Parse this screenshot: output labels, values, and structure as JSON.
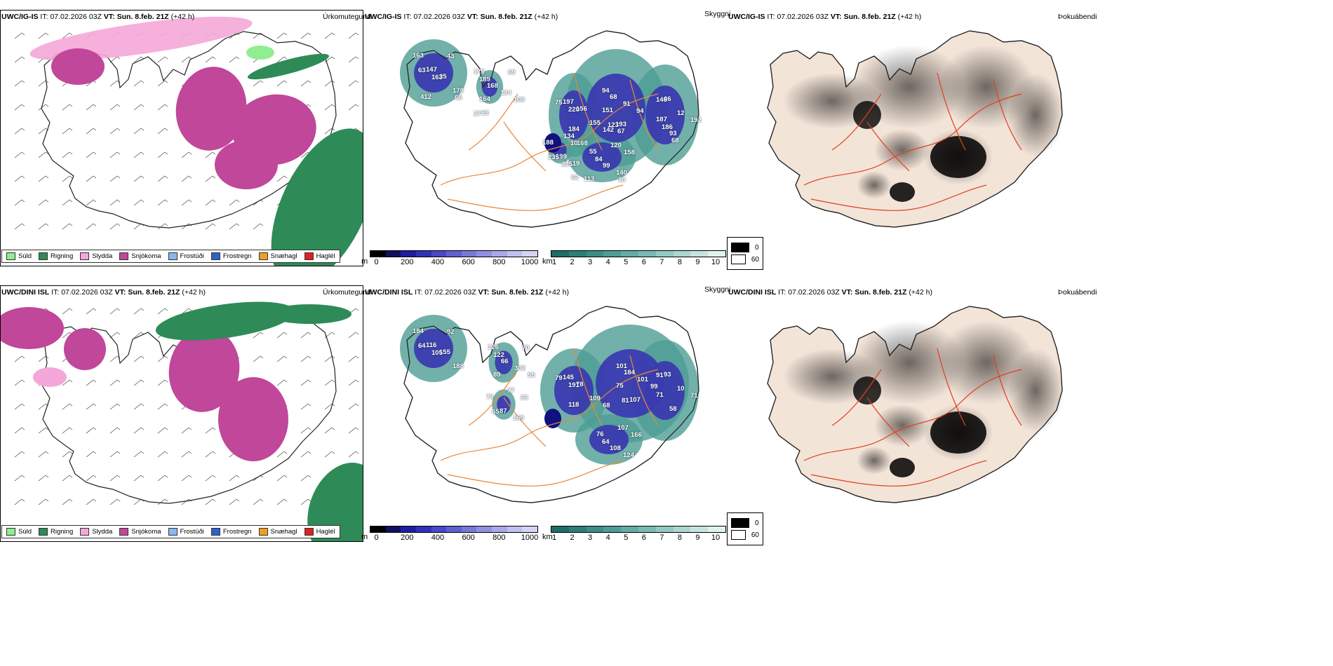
{
  "rows": [
    {
      "model": "UWC/IG-IS",
      "it_label": "IT:",
      "it_value": "07.02.2026 03Z",
      "vt_label": "VT:",
      "vt_value": "Sun. 8.feb. 21Z",
      "lead": "(+42 h)",
      "numbers": [
        "163",
        "179",
        "197",
        "68",
        "86",
        "134",
        "120",
        "43",
        "69",
        "75",
        "94",
        "146",
        "188",
        "55",
        "147",
        "168",
        "156",
        "91",
        "12",
        "168",
        "158",
        "63",
        "189",
        "220",
        "151",
        "187",
        "199",
        "99",
        "35",
        "124",
        "155",
        "94",
        "192",
        "235",
        "84",
        "163",
        "164",
        "184",
        "193",
        "93",
        "119",
        "140",
        "178",
        "108",
        "142",
        "123",
        "186",
        "235",
        "113",
        "412",
        "63",
        "10",
        "67",
        "68",
        "62",
        "18",
        "65",
        "27"
      ]
    },
    {
      "model": "UWC/DINI ISL",
      "it_label": "IT:",
      "it_value": "07.02.2026 03Z",
      "vt_label": "VT:",
      "vt_value": "Sun. 8.feb. 21Z",
      "lead": "(+42 h)",
      "numbers": [
        "184",
        "126",
        "145",
        "184",
        "93",
        "77",
        "107",
        "92",
        "70",
        "79",
        "101",
        "91",
        "73",
        "76",
        "116",
        "66",
        "78",
        "101",
        "10",
        "63",
        "166",
        "64",
        "122",
        "191",
        "75",
        "71",
        "87",
        "108",
        "155",
        "302",
        "109",
        "99",
        "71",
        "65",
        "64",
        "105",
        "89",
        "118",
        "107",
        "58",
        "169",
        "124",
        "188",
        "55",
        "68",
        "81"
      ]
    }
  ],
  "panel_titles": {
    "precip_type": "Úrkomutegund",
    "visibility": "Skyggni",
    "fog": "Þokuábendi"
  },
  "precip_legend": [
    {
      "label": "Súld",
      "color": "#90ee90"
    },
    {
      "label": "Rigning",
      "color": "#2e8b57"
    },
    {
      "label": "Slydda",
      "color": "#f4a7d8"
    },
    {
      "label": "Snjókoma",
      "color": "#c0479a"
    },
    {
      "label": "Frostúði",
      "color": "#87b8f0"
    },
    {
      "label": "Frostregn",
      "color": "#2f62c8"
    },
    {
      "label": "Snæhagl",
      "color": "#f0a020"
    },
    {
      "label": "Haglél",
      "color": "#e02020"
    }
  ],
  "visibility_m": {
    "unit": "m",
    "ticks": [
      "0",
      "200",
      "400",
      "600",
      "800",
      "1000"
    ],
    "colors": [
      "#000000",
      "#101060",
      "#1e1ea0",
      "#3030b8",
      "#4848c8",
      "#6060d0",
      "#7878d8",
      "#9090e0",
      "#a8a8e8",
      "#c0c0f0",
      "#d4d4f6"
    ]
  },
  "visibility_km": {
    "unit": "km",
    "ticks": [
      "1",
      "2",
      "3",
      "4",
      "5",
      "6",
      "7",
      "8",
      "9",
      "10"
    ],
    "colors": [
      "#1e6e68",
      "#2b7f78",
      "#3b8e86",
      "#4d9d95",
      "#62aca4",
      "#79bbb3",
      "#92c9c2",
      "#acd6d0",
      "#c6e4df",
      "#e0f1ee"
    ]
  },
  "fog_legend": [
    {
      "label": "0",
      "color": "#000000"
    },
    {
      "label": "60",
      "color": "#ffffff"
    }
  ],
  "colors": {
    "snow": "#c0479a",
    "rain": "#2e8b57",
    "sleet": "#f4a7d8",
    "drizzle": "#90ee90",
    "vis_blue": "#3b3bb0",
    "vis_teal": "#4d9d95",
    "road": "#e8873a",
    "land_fog": "#f3e4d8",
    "fog_dark": "#000000"
  }
}
